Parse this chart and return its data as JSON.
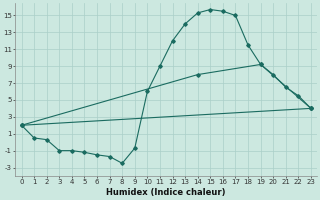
{
  "xlabel": "Humidex (Indice chaleur)",
  "background_color": "#cce8e0",
  "grid_color": "#aacfc8",
  "line_color": "#1a6b60",
  "xlim": [
    -0.5,
    23.5
  ],
  "ylim": [
    -4,
    16.5
  ],
  "yticks": [
    -3,
    -1,
    1,
    3,
    5,
    7,
    9,
    11,
    13,
    15
  ],
  "xticks": [
    0,
    1,
    2,
    3,
    4,
    5,
    6,
    7,
    8,
    9,
    10,
    11,
    12,
    13,
    14,
    15,
    16,
    17,
    18,
    19,
    20,
    21,
    22,
    23
  ],
  "series1_x": [
    0,
    1,
    2,
    3,
    4,
    5,
    6,
    7,
    8,
    9,
    10,
    11,
    12,
    13,
    14,
    15,
    16,
    17,
    18,
    19,
    20,
    21,
    22,
    23
  ],
  "series1_y": [
    2,
    0.5,
    0.3,
    -1,
    -1,
    -1.2,
    -1.5,
    -1.7,
    -2.5,
    -0.7,
    6,
    9,
    12,
    14,
    15.3,
    15.7,
    15.5,
    15,
    11.5,
    9.2,
    8,
    6.5,
    5.5,
    4
  ],
  "series2_x": [
    0,
    14,
    19,
    23
  ],
  "series2_y": [
    2,
    8,
    9.2,
    4
  ],
  "series3_x": [
    0,
    23
  ],
  "series3_y": [
    2,
    4
  ],
  "marker": "D",
  "markersize": 1.8,
  "linewidth": 0.8,
  "xlabel_fontsize": 6,
  "tick_fontsize": 5
}
